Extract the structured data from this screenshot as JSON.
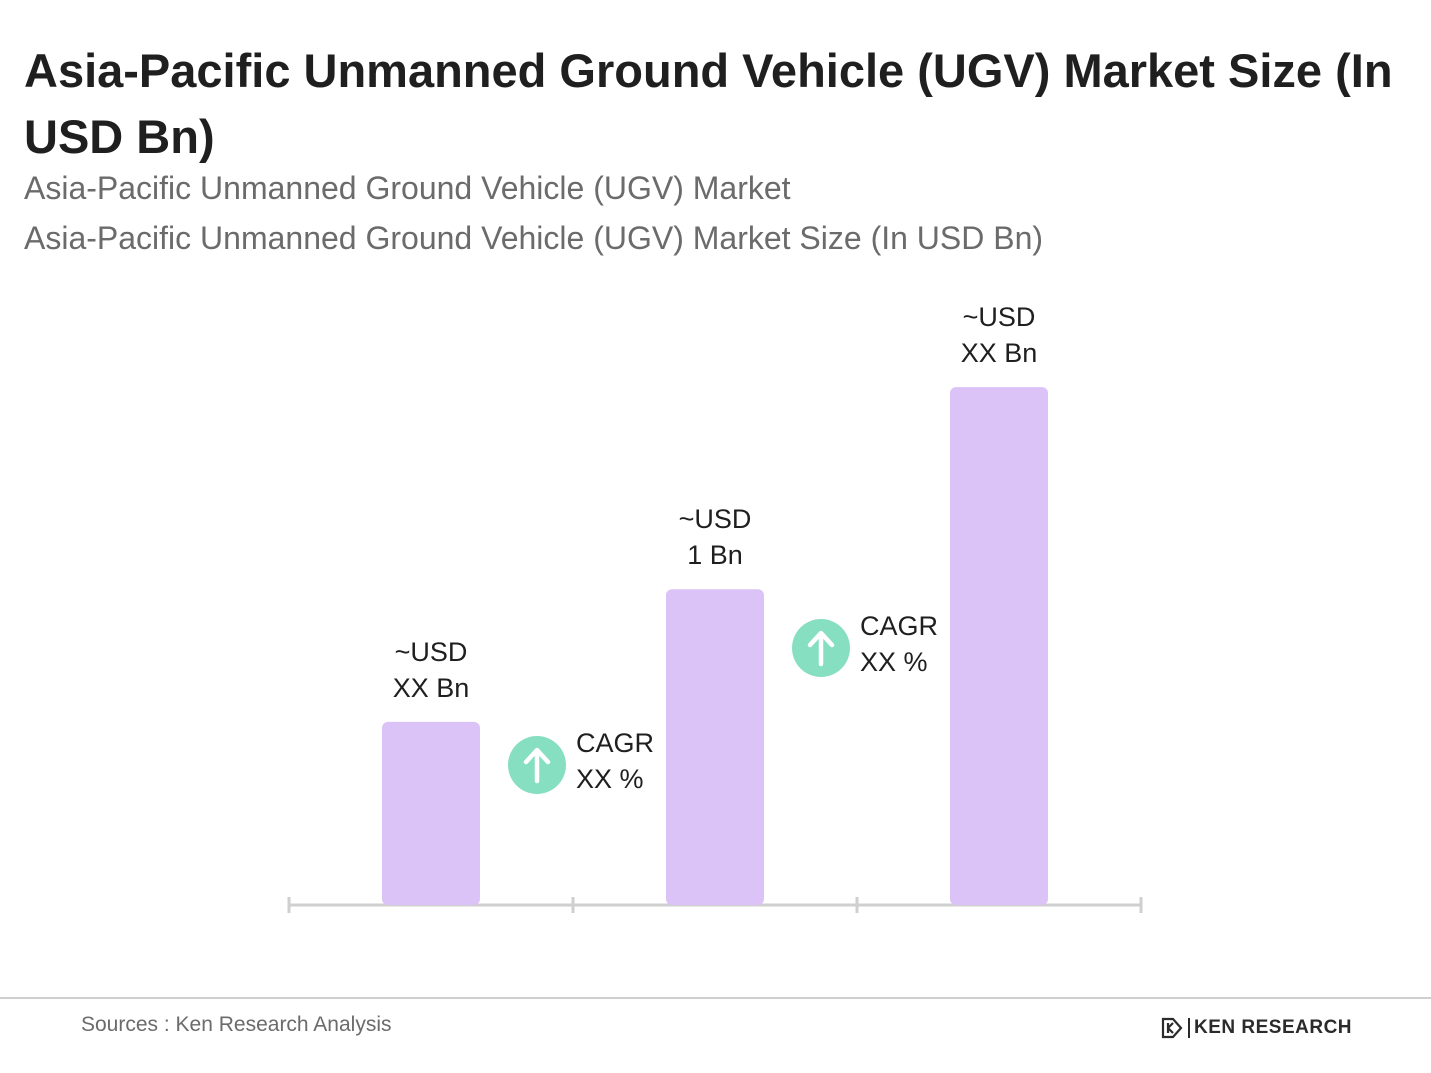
{
  "header": {
    "title": "Asia-Pacific Unmanned Ground Vehicle (UGV) Market Size (In USD Bn)",
    "subtitle_1": "Asia-Pacific Unmanned Ground Vehicle (UGV) Market",
    "subtitle_2": "Asia-Pacific Unmanned Ground Vehicle (UGV) Market Size (In USD Bn)"
  },
  "chart_data": {
    "type": "bar",
    "title": "Asia-Pacific Unmanned Ground Vehicle (UGV) Market Size (In USD Bn)",
    "categories": [
      "",
      "",
      ""
    ],
    "values": [
      0.58,
      1.0,
      1.64
    ],
    "ylim": [
      0,
      1.9
    ],
    "data_labels": [
      [
        "~USD",
        "XX Bn"
      ],
      [
        "~USD",
        "1 Bn"
      ],
      [
        "~USD",
        "XX Bn"
      ]
    ],
    "annotations": [
      {
        "between": [
          0,
          1
        ],
        "lines": [
          "CAGR",
          "XX %"
        ],
        "icon": "arrow-up-icon"
      },
      {
        "between": [
          1,
          2
        ],
        "lines": [
          "CAGR",
          "XX %"
        ],
        "icon": "arrow-up-icon"
      }
    ],
    "grid": false,
    "colors": {
      "bar": "#dcc3f7",
      "cagr_circle": "#86dfc0",
      "axis": "#cfcfcf"
    }
  },
  "footer": {
    "source": "Sources : Ken Research Analysis",
    "logo_text": "KEN RESEARCH",
    "logo_icon": "ken-research-logo-icon"
  }
}
